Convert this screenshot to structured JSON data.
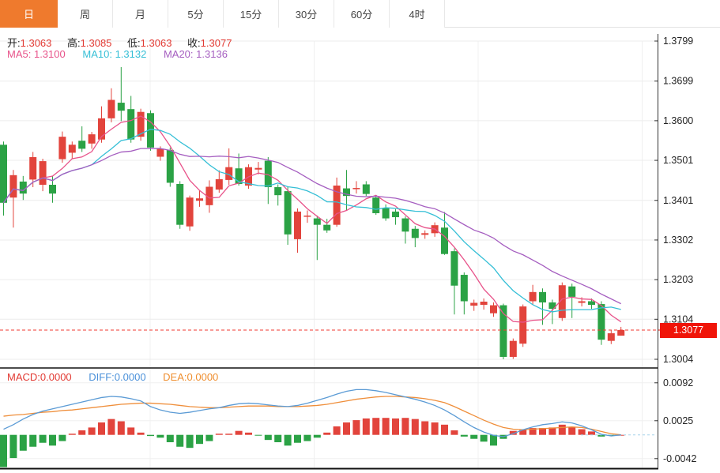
{
  "tabs": [
    {
      "label": "日",
      "active": true
    },
    {
      "label": "周",
      "active": false
    },
    {
      "label": "月",
      "active": false
    },
    {
      "label": "5分",
      "active": false
    },
    {
      "label": "15分",
      "active": false
    },
    {
      "label": "30分",
      "active": false
    },
    {
      "label": "60分",
      "active": false
    },
    {
      "label": "4时",
      "active": false
    }
  ],
  "ohlc_readout": [
    {
      "label": "开:",
      "value": "1.3063"
    },
    {
      "label": "高:",
      "value": "1.3085"
    },
    {
      "label": "低:",
      "value": "1.3063"
    },
    {
      "label": "收:",
      "value": "1.3077"
    }
  ],
  "ma_readout": [
    {
      "label": "MA5:",
      "value": "1.3100"
    },
    {
      "label": "MA10:",
      "value": "1.3132"
    },
    {
      "label": "MA20:",
      "value": "1.3136"
    }
  ],
  "macd_readout": [
    {
      "label": "MACD:",
      "value": "0.0000"
    },
    {
      "label": "DIFF:",
      "value": "0.0000"
    },
    {
      "label": "DEA:",
      "value": "0.0000"
    }
  ],
  "price_badge": {
    "value": "1.3077"
  },
  "colors": {
    "up": "#e2443c",
    "down": "#2ba245",
    "ma5": "#e8538a",
    "ma10": "#35bfd6",
    "ma20": "#a55ec0",
    "diff": "#5b9bd5",
    "dea": "#ef8e3a",
    "badge": "#f01408",
    "tab_active": "#ef7a2d",
    "dashed_line": "#f03a30",
    "grid": "#ececec",
    "axis": "#333333"
  },
  "chart_data": {
    "type": "candlestick",
    "title": "",
    "x_count": 64,
    "y_axis": {
      "range": [
        1.3004,
        1.3799
      ],
      "ticks": [
        1.3799,
        1.3699,
        1.36,
        1.3501,
        1.3401,
        1.3302,
        1.3203,
        1.3104,
        1.3004
      ],
      "labels": [
        "1.3799",
        "1.3699",
        "1.3600",
        "1.3501",
        "1.3401",
        "1.3302",
        "1.3203",
        "1.3104",
        "1.3004"
      ]
    },
    "last_price": 1.3077,
    "ma_periods": [
      5,
      10,
      20
    ],
    "ohlc": [
      [
        1.354,
        1.3548,
        1.3363,
        1.3395
      ],
      [
        1.3408,
        1.3477,
        1.3333,
        1.3464
      ],
      [
        1.3448,
        1.3462,
        1.3402,
        1.3418
      ],
      [
        1.3453,
        1.3522,
        1.3434,
        1.3509
      ],
      [
        1.344,
        1.3505,
        1.3424,
        1.3499
      ],
      [
        1.344,
        1.3462,
        1.3395,
        1.3418
      ],
      [
        1.3504,
        1.3573,
        1.3495,
        1.356
      ],
      [
        1.352,
        1.3548,
        1.3505,
        1.354
      ],
      [
        1.355,
        1.3586,
        1.3522,
        1.353
      ],
      [
        1.3543,
        1.3572,
        1.353,
        1.3566
      ],
      [
        1.3553,
        1.3636,
        1.3545,
        1.3606
      ],
      [
        1.3606,
        1.3681,
        1.3596,
        1.3652
      ],
      [
        1.3645,
        1.3734,
        1.3599,
        1.3625
      ],
      [
        1.3629,
        1.3662,
        1.3545,
        1.3553
      ],
      [
        1.356,
        1.363,
        1.355,
        1.3622
      ],
      [
        1.3619,
        1.3626,
        1.3525,
        1.3533
      ],
      [
        1.351,
        1.3536,
        1.35,
        1.353
      ],
      [
        1.3527,
        1.3533,
        1.3435,
        1.3445
      ],
      [
        1.3442,
        1.3449,
        1.333,
        1.334
      ],
      [
        1.3336,
        1.3413,
        1.3325,
        1.3408
      ],
      [
        1.34,
        1.3426,
        1.3385,
        1.3406
      ],
      [
        1.3389,
        1.3451,
        1.337,
        1.3435
      ],
      [
        1.3428,
        1.3476,
        1.342,
        1.3454
      ],
      [
        1.3452,
        1.3531,
        1.344,
        1.3484
      ],
      [
        1.3481,
        1.3518,
        1.3438,
        1.3442
      ],
      [
        1.3438,
        1.3491,
        1.343,
        1.3484
      ],
      [
        1.3478,
        1.3497,
        1.3466,
        1.3482
      ],
      [
        1.35,
        1.3509,
        1.3392,
        1.3434
      ],
      [
        1.3434,
        1.3441,
        1.3388,
        1.3414
      ],
      [
        1.3424,
        1.3435,
        1.329,
        1.3316
      ],
      [
        1.3304,
        1.3381,
        1.327,
        1.3373
      ],
      [
        1.336,
        1.3376,
        1.3345,
        1.3363
      ],
      [
        1.3356,
        1.3363,
        1.3252,
        1.334
      ],
      [
        1.334,
        1.3355,
        1.332,
        1.3326
      ],
      [
        1.334,
        1.3458,
        1.3335,
        1.3438
      ],
      [
        1.3431,
        1.3477,
        1.3375,
        1.3412
      ],
      [
        1.3429,
        1.3449,
        1.3418,
        1.3432
      ],
      [
        1.3441,
        1.3449,
        1.3412,
        1.3417
      ],
      [
        1.3408,
        1.3413,
        1.3365,
        1.3369
      ],
      [
        1.3382,
        1.3391,
        1.335,
        1.3356
      ],
      [
        1.3373,
        1.3379,
        1.334,
        1.3359
      ],
      [
        1.3356,
        1.3361,
        1.3293,
        1.3323
      ],
      [
        1.333,
        1.3337,
        1.3284,
        1.3307
      ],
      [
        1.3315,
        1.3326,
        1.3305,
        1.3319
      ],
      [
        1.3319,
        1.3346,
        1.331,
        1.3339
      ],
      [
        1.3333,
        1.3372,
        1.3265,
        1.3267
      ],
      [
        1.3274,
        1.3281,
        1.3116,
        1.3188
      ],
      [
        1.3215,
        1.3221,
        1.3116,
        1.3149
      ],
      [
        1.3138,
        1.3153,
        1.3125,
        1.3145
      ],
      [
        1.314,
        1.3156,
        1.3128,
        1.3148
      ],
      [
        1.3119,
        1.3146,
        1.311,
        1.3139
      ],
      [
        1.3139,
        1.3143,
        1.3004,
        1.301
      ],
      [
        1.301,
        1.3056,
        1.3005,
        1.305
      ],
      [
        1.3043,
        1.3141,
        1.3035,
        1.3136
      ],
      [
        1.3149,
        1.319,
        1.314,
        1.3172
      ],
      [
        1.3172,
        1.3181,
        1.309,
        1.3146
      ],
      [
        1.3146,
        1.3153,
        1.3092,
        1.313
      ],
      [
        1.3107,
        1.3196,
        1.31,
        1.3189
      ],
      [
        1.3186,
        1.3193,
        1.3107,
        1.316
      ],
      [
        1.3145,
        1.3159,
        1.3136,
        1.3149
      ],
      [
        1.3149,
        1.3156,
        1.313,
        1.314
      ],
      [
        1.3142,
        1.3149,
        1.304,
        1.3053
      ],
      [
        1.305,
        1.3076,
        1.3042,
        1.3069
      ],
      [
        1.3063,
        1.3085,
        1.3063,
        1.3077
      ]
    ],
    "macd": {
      "y_axis": {
        "ticks": [
          0.0092,
          0.0025,
          -0.0042
        ],
        "labels": [
          "0.0092",
          "0.0025",
          "-0.0042"
        ]
      },
      "hist": [
        -0.0057,
        -0.0041,
        -0.0028,
        -0.0021,
        -0.0014,
        -0.0019,
        -0.0011,
        0.0002,
        0.0008,
        0.0013,
        0.0022,
        0.0028,
        0.0024,
        0.0013,
        0.0004,
        -0.0002,
        -0.0005,
        -0.0013,
        -0.0021,
        -0.0023,
        -0.0016,
        -0.0011,
        0.0002,
        0.0002,
        0.0007,
        0.0004,
        -0.0001,
        -0.0009,
        -0.0013,
        -0.0019,
        -0.0014,
        -0.0011,
        -0.0005,
        0.0004,
        0.0015,
        0.0022,
        0.0026,
        0.0029,
        0.003,
        0.003,
        0.0029,
        0.003,
        0.0028,
        0.0024,
        0.0022,
        0.0018,
        0.0008,
        -0.0003,
        -0.0007,
        -0.0012,
        -0.0019,
        -0.0007,
        0.0007,
        0.001,
        0.0012,
        0.0012,
        0.0013,
        0.0018,
        0.0013,
        0.001,
        0.0006,
        -0.0003,
        -0.0001,
        0.0
      ],
      "diff": [
        0.001,
        0.0018,
        0.0028,
        0.0036,
        0.0042,
        0.0046,
        0.005,
        0.0054,
        0.0058,
        0.0062,
        0.0066,
        0.0068,
        0.0067,
        0.0064,
        0.006,
        0.005,
        0.0044,
        0.004,
        0.0038,
        0.004,
        0.0043,
        0.0046,
        0.0048,
        0.0052,
        0.0055,
        0.0056,
        0.0055,
        0.0053,
        0.0051,
        0.005,
        0.0052,
        0.0056,
        0.0061,
        0.0066,
        0.0072,
        0.0077,
        0.008,
        0.008,
        0.0078,
        0.0075,
        0.0071,
        0.0067,
        0.0063,
        0.0058,
        0.0052,
        0.0044,
        0.0034,
        0.0023,
        0.0013,
        0.0005,
        -0.0001,
        -0.0003,
        0.0002,
        0.0009,
        0.0014,
        0.0018,
        0.002,
        0.0023,
        0.0021,
        0.0016,
        0.0009,
        0.0001,
        -0.0002,
        0.0
      ],
      "dea": [
        0.0033,
        0.0035,
        0.0036,
        0.0038,
        0.004,
        0.0041,
        0.0043,
        0.0044,
        0.0046,
        0.0048,
        0.005,
        0.0052,
        0.0054,
        0.0055,
        0.0056,
        0.0056,
        0.0055,
        0.0054,
        0.0052,
        0.005,
        0.0049,
        0.0048,
        0.0048,
        0.0049,
        0.005,
        0.0051,
        0.0051,
        0.0051,
        0.005,
        0.005,
        0.005,
        0.0051,
        0.0052,
        0.0054,
        0.0057,
        0.006,
        0.0063,
        0.0065,
        0.0067,
        0.0068,
        0.0068,
        0.0067,
        0.0066,
        0.0064,
        0.0061,
        0.0057,
        0.005,
        0.0042,
        0.0034,
        0.0026,
        0.0019,
        0.0013,
        0.001,
        0.0009,
        0.001,
        0.0011,
        0.0012,
        0.0013,
        0.0014,
        0.0013,
        0.001,
        0.0006,
        0.0002,
        0.0
      ]
    }
  }
}
